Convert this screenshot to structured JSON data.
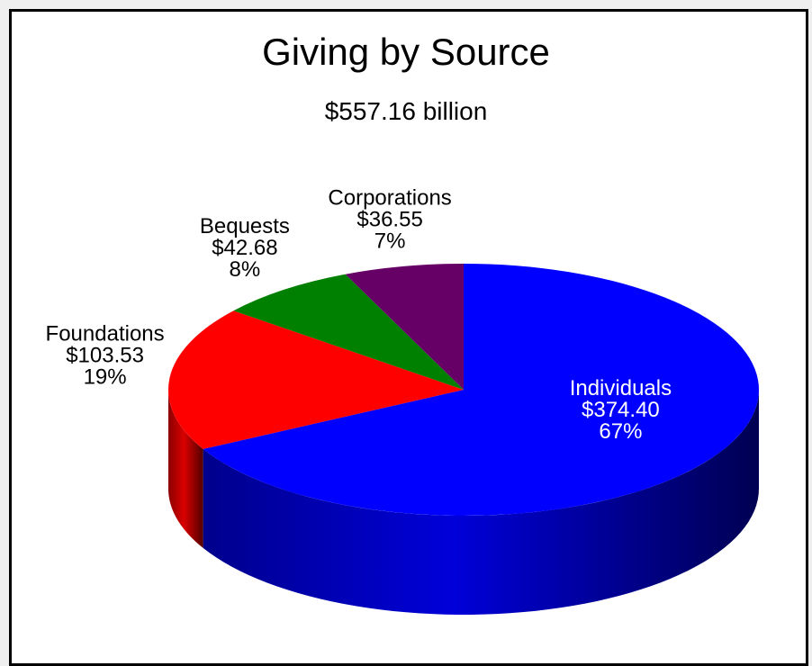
{
  "chart_data": {
    "type": "pie",
    "title": "Giving by Source",
    "subtitle": "$557.16 billion",
    "slices": [
      {
        "name": "Individuals",
        "value": 374.4,
        "value_label": "$374.40",
        "percent": 67,
        "percent_label": "67%",
        "color": "#0000ff"
      },
      {
        "name": "Foundations",
        "value": 103.53,
        "value_label": "$103.53",
        "percent": 19,
        "percent_label": "19%",
        "color": "#ff0000"
      },
      {
        "name": "Bequests",
        "value": 42.68,
        "value_label": "$42.68",
        "percent": 8,
        "percent_label": "8%",
        "color": "#008000"
      },
      {
        "name": "Corporations",
        "value": 36.55,
        "value_label": "$36.55",
        "percent": 7,
        "percent_label": "7%",
        "color": "#660066"
      }
    ]
  }
}
